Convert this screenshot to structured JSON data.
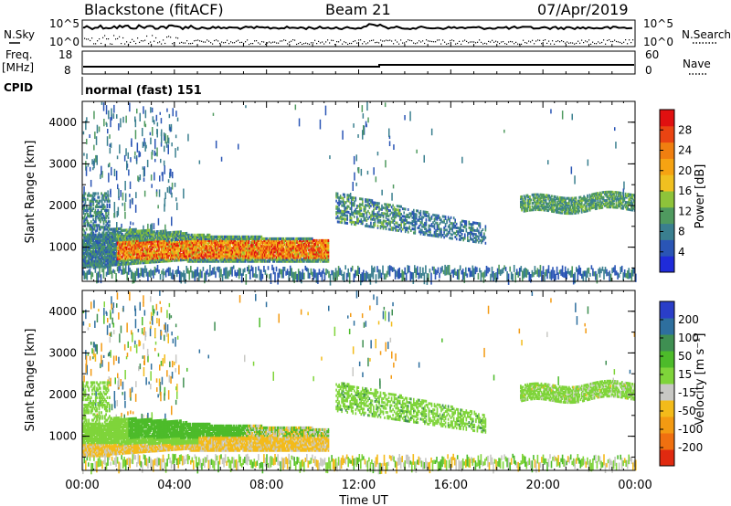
{
  "header": {
    "title": "Blackstone (fitACF)",
    "beam": "Beam 21",
    "date": "07/Apr/2019"
  },
  "top_panels": {
    "nsky_label": "N.Sky",
    "nsearch_label": "N.Search",
    "freq_label": "Freq.",
    "freq_unit": "[MHz]",
    "cpid_label": "CPID",
    "nave_label": "Nave",
    "left_ticks_n": [
      "10^5",
      "10^0"
    ],
    "right_ticks_n": [
      "10^5",
      "10^0"
    ],
    "left_ticks_freq": [
      "18",
      "8"
    ],
    "right_ticks_nave": [
      "60",
      "0"
    ],
    "cpid_text": "normal (fast) 151"
  },
  "colorbars": {
    "power": {
      "label": "Power [dB]",
      "ticks": [
        "28",
        "24",
        "20",
        "16",
        "12",
        "8",
        "4"
      ],
      "colors": [
        "#1f2bd9",
        "#2a55b5",
        "#3a7f8f",
        "#4f9a5f",
        "#8ec33a",
        "#f0c020",
        "#f6a312",
        "#f07f10",
        "#ea4412",
        "#e01010"
      ]
    },
    "velocity": {
      "label": "Velocity [m s⁻¹]",
      "ticks": [
        "200",
        "100",
        "50",
        "15",
        "-15",
        "-50",
        "-100",
        "-200"
      ],
      "colors": [
        "#2a3ec8",
        "#2e6f9e",
        "#3f8f52",
        "#4dbb2a",
        "#7fd43a",
        "#c8c8c4",
        "#f3bb1a",
        "#f39a12",
        "#f07010",
        "#e02a10"
      ]
    }
  },
  "axes": {
    "ylabel": "Slant Range [km]",
    "yticks": [
      "4000",
      "3000",
      "2000",
      "1000"
    ],
    "xticks": [
      "00:00",
      "04:00",
      "08:00",
      "12:00",
      "16:00",
      "20:00",
      "00:00"
    ],
    "xlabel": "Time UT"
  },
  "chart_data": [
    {
      "type": "heatmap",
      "title": "Power [dB]",
      "x_range_hours": [
        0,
        24
      ],
      "y_range_km": [
        180,
        4500
      ],
      "color_range_db": [
        0,
        30
      ],
      "features": [
        {
          "hours": [
            0,
            10.7
          ],
          "range_km": [
            550,
            1450
          ],
          "peak_db": 29
        },
        {
          "hours": [
            10.8,
            17.5
          ],
          "range_km": [
            1200,
            2100
          ],
          "peak_db": 12
        },
        {
          "hours": [
            19.0,
            24
          ],
          "range_km": [
            1800,
            2300
          ],
          "peak_db": 14
        }
      ]
    },
    {
      "type": "heatmap",
      "title": "Velocity [m s⁻¹]",
      "x_range_hours": [
        0,
        24
      ],
      "y_range_km": [
        180,
        4500
      ],
      "color_range_ms": [
        -250,
        250
      ],
      "features": [
        {
          "hours": [
            0,
            10.7
          ],
          "range_km": [
            550,
            1450
          ],
          "velocity_ms": -60
        },
        {
          "hours": [
            2.0,
            10.5
          ],
          "range_km": [
            900,
            1400
          ],
          "velocity_ms": 30
        },
        {
          "hours": [
            11.0,
            24
          ],
          "range_km": [
            1200,
            2300
          ],
          "velocity_ms": 0
        }
      ]
    }
  ]
}
